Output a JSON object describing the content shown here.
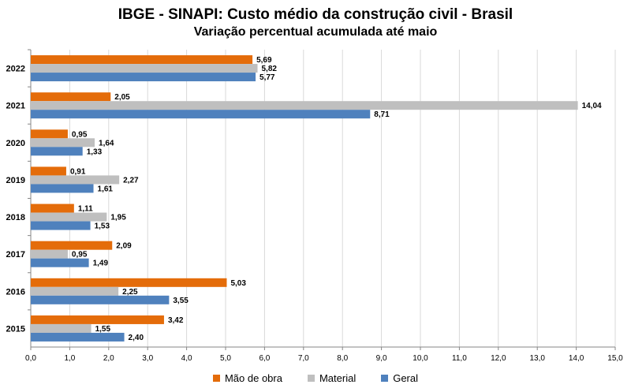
{
  "chart_data": {
    "type": "bar",
    "orientation": "horizontal",
    "title": "IBGE - SINAPI: Custo médio da construção civil - Brasil",
    "subtitle": "Variação percentual acumulada até maio",
    "categories": [
      "2022",
      "2021",
      "2020",
      "2019",
      "2018",
      "2017",
      "2016",
      "2015"
    ],
    "series": [
      {
        "name": "Mão de obra",
        "color": "#E46C0A",
        "values": [
          5.69,
          2.05,
          0.95,
          0.91,
          1.11,
          2.09,
          5.03,
          3.42
        ],
        "labels": [
          "5,69",
          "2,05",
          "0,95",
          "0,91",
          "1,11",
          "2,09",
          "5,03",
          "3,42"
        ]
      },
      {
        "name": "Material",
        "color": "#BFBFBF",
        "values": [
          5.82,
          14.04,
          1.64,
          2.27,
          1.95,
          0.95,
          2.25,
          1.55
        ],
        "labels": [
          "5,82",
          "14,04",
          "1,64",
          "2,27",
          "1,95",
          "0,95",
          "2,25",
          "1,55"
        ]
      },
      {
        "name": "Geral",
        "color": "#4F81BD",
        "values": [
          5.77,
          8.71,
          1.33,
          1.61,
          1.53,
          1.49,
          3.55,
          2.4
        ],
        "labels": [
          "5,77",
          "8,71",
          "1,33",
          "1,61",
          "1,53",
          "1,49",
          "3,55",
          "2,40"
        ]
      }
    ],
    "xlim": [
      0,
      15
    ],
    "xticks": [
      "0,0",
      "1,0",
      "2,0",
      "3,0",
      "4,0",
      "5,0",
      "6,0",
      "7,0",
      "8,0",
      "9,0",
      "10,0",
      "11,0",
      "12,0",
      "13,0",
      "14,0",
      "15,0"
    ],
    "grid": true,
    "legend": "bottom"
  }
}
